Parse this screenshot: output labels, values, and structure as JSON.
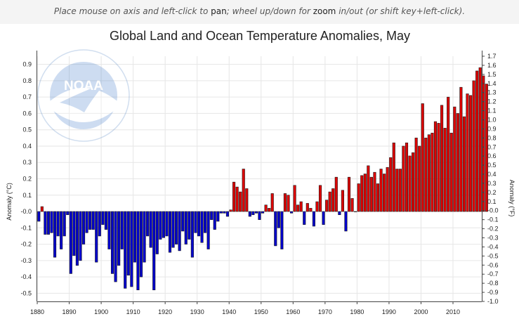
{
  "hint": {
    "part1": "Place mouse on axis and left-click to ",
    "pan": "pan",
    "part2": "; wheel up/down for ",
    "zoom": "zoom",
    "part3": " in/out (or shift key+left-click)."
  },
  "logo": {
    "text": "NOAA"
  },
  "colors": {
    "positive": "#dd0000",
    "negative": "#0000cc",
    "grid": "#e6e6e6"
  },
  "chart_data": {
    "type": "bar",
    "title": "Global Land and Ocean Temperature Anomalies, May",
    "ylabel": "Anomaly (°C)",
    "y2label": "Anomaly (°F)",
    "xlabel": "",
    "xlim": [
      1880,
      2019
    ],
    "ylim": [
      -0.55,
      0.95
    ],
    "y2lim": [
      -1.0,
      1.7
    ],
    "grid": true,
    "x_ticks": [
      1880,
      1890,
      1900,
      1910,
      1920,
      1930,
      1940,
      1950,
      1960,
      1970,
      1980,
      1990,
      2000,
      2010
    ],
    "y_ticks": [
      "-0.5",
      "-0.4",
      "-0.3",
      "-0.2",
      "-0.1",
      "-0.0",
      "0.1",
      "0.2",
      "0.3",
      "0.4",
      "0.5",
      "0.6",
      "0.7",
      "0.8",
      "0.9"
    ],
    "y2_ticks": [
      "-1.0",
      "-0.9",
      "-0.8",
      "-0.7",
      "-0.6",
      "-0.5",
      "-0.4",
      "-0.3",
      "-0.2",
      "-0.1",
      "-0.0",
      "0.1",
      "0.2",
      "0.3",
      "0.4",
      "0.5",
      "0.6",
      "0.7",
      "0.8",
      "0.9",
      "1.0",
      "1.1",
      "1.2",
      "1.3",
      "1.4",
      "1.5",
      "1.6",
      "1.7"
    ],
    "first_year": 1880,
    "values": [
      -0.06,
      0.03,
      -0.14,
      -0.14,
      -0.13,
      -0.28,
      -0.15,
      -0.23,
      -0.15,
      -0.02,
      -0.38,
      -0.27,
      -0.33,
      -0.3,
      -0.2,
      -0.13,
      -0.11,
      -0.11,
      -0.31,
      -0.15,
      -0.08,
      -0.11,
      -0.23,
      -0.38,
      -0.43,
      -0.33,
      -0.23,
      -0.47,
      -0.39,
      -0.46,
      -0.31,
      -0.48,
      -0.4,
      -0.31,
      -0.15,
      -0.22,
      -0.48,
      -0.26,
      -0.17,
      -0.16,
      -0.15,
      -0.25,
      -0.22,
      -0.2,
      -0.24,
      -0.12,
      -0.2,
      -0.17,
      -0.28,
      -0.13,
      -0.15,
      -0.19,
      -0.13,
      -0.23,
      -0.05,
      -0.11,
      -0.06,
      -0.01,
      -0.01,
      -0.03,
      0.01,
      0.18,
      0.15,
      0.12,
      0.26,
      0.14,
      -0.03,
      -0.02,
      -0.01,
      -0.05,
      -0.01,
      0.04,
      0.02,
      0.11,
      -0.21,
      -0.1,
      -0.23,
      0.11,
      0.1,
      -0.01,
      0.16,
      0.04,
      0.06,
      -0.08,
      0.05,
      0.02,
      -0.09,
      0.06,
      0.16,
      -0.08,
      0.07,
      0.12,
      0.14,
      0.21,
      -0.02,
      0.13,
      -0.12,
      0.21,
      0.08,
      0.0,
      0.17,
      0.22,
      0.23,
      0.28,
      0.21,
      0.24,
      0.17,
      0.26,
      0.23,
      0.27,
      0.33,
      0.42,
      0.26,
      0.26,
      0.4,
      0.42,
      0.34,
      0.36,
      0.45,
      0.4,
      0.66,
      0.45,
      0.47,
      0.48,
      0.55,
      0.54,
      0.65,
      0.51,
      0.7,
      0.48,
      0.64,
      0.6,
      0.76,
      0.58,
      0.72,
      0.71,
      0.8,
      0.86,
      0.88,
      0.83,
      0.78
    ]
  }
}
